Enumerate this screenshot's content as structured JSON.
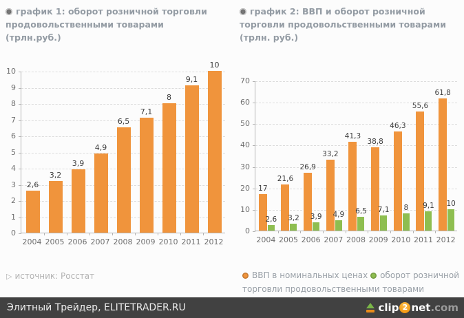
{
  "chart_data": [
    {
      "type": "bar",
      "title": "график 1: оборот розничной торговли продовольственными товарами (трлн.руб.)",
      "categories": [
        "2004",
        "2005",
        "2006",
        "2007",
        "2008",
        "2009",
        "2010",
        "2011",
        "2012"
      ],
      "series": [
        {
          "name": "оборот розничной торговли продовольственными товарами",
          "color": "#f0943c",
          "values": [
            2.6,
            3.2,
            3.9,
            4.9,
            6.5,
            7.1,
            8,
            9.1,
            10
          ],
          "labels": [
            "2,6",
            "3,2",
            "3,9",
            "4,9",
            "6,5",
            "7,1",
            "8",
            "9,1",
            "10"
          ]
        }
      ],
      "xlabel": "",
      "ylabel": "",
      "ylim": [
        0,
        10
      ],
      "ystep": 1,
      "grid": true,
      "legend_position": "none"
    },
    {
      "type": "grouped-bar",
      "title": "график 2: ВВП и оборот розничной торговли продовольственными товарами (трлн. руб.)",
      "categories": [
        "2004",
        "2005",
        "2006",
        "2007",
        "2008",
        "2009",
        "2010",
        "2011",
        "2012"
      ],
      "series": [
        {
          "name": "ВВП в номинальных ценах",
          "color": "#f0943c",
          "values": [
            17,
            21.6,
            26.9,
            33.2,
            41.3,
            38.8,
            46.3,
            55.6,
            61.8
          ],
          "labels": [
            "17",
            "21,6",
            "26,9",
            "33,2",
            "41,3",
            "38,8",
            "46,3",
            "55,6",
            "61,8"
          ]
        },
        {
          "name": "оборот розничной торговли продовольственными товарами",
          "color": "#8ebe50",
          "values": [
            2.6,
            3.2,
            3.9,
            4.9,
            6.5,
            7.1,
            8,
            9.1,
            10
          ],
          "labels": [
            "2,6",
            "3,2",
            "3,9",
            "4,9",
            "6,5",
            "7,1",
            "8",
            "9,1",
            "10"
          ]
        }
      ],
      "xlabel": "",
      "ylabel": "",
      "ylim": [
        0,
        70
      ],
      "ystep": 10,
      "grid": true,
      "legend_position": "bottom"
    }
  ],
  "source": {
    "text": "источник: Росстат"
  },
  "legend": [
    {
      "label": "ВВП в номинальных ценах",
      "color": "#f0943c"
    },
    {
      "label": "оборот розничной торговли продовольственными товарами",
      "color": "#8ebe50"
    }
  ],
  "footer": {
    "text": "Элитный Трейдер, ELITETRADER.RU"
  },
  "logo": {
    "clip": "clip",
    "two": "2",
    "net": "net",
    "com": ".com"
  },
  "colors": {
    "accent_orange": "#f0943c",
    "accent_green": "#8ebe50",
    "title_gray": "#949ca4",
    "footer_bg": "#414141"
  }
}
